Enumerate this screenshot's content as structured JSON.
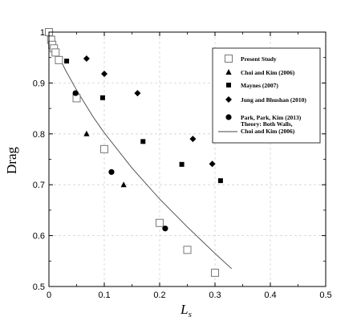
{
  "chart_data": {
    "type": "scatter",
    "xlabel": "L",
    "xlabel_subscript": "s",
    "ylabel": "Drag",
    "xlim": [
      0,
      0.5
    ],
    "ylim": [
      0.5,
      1.0
    ],
    "xticks": [
      0,
      0.1,
      0.2,
      0.3,
      0.4,
      0.5
    ],
    "xtick_labels": [
      "0",
      "0.1",
      "0.2",
      "0.3",
      "0.4",
      "0.5"
    ],
    "yticks": [
      0.5,
      0.6,
      0.7,
      0.8,
      0.9,
      1.0
    ],
    "ytick_labels": [
      "0.5",
      "0.6",
      "0.7",
      "0.8",
      "0.9",
      "1"
    ],
    "grid": true,
    "legend_position": "top-right",
    "series": [
      {
        "name": "Present Study",
        "marker": "open-square",
        "x": [
          0.0,
          0.004,
          0.006,
          0.009,
          0.012,
          0.018,
          0.05,
          0.1,
          0.2,
          0.25,
          0.3
        ],
        "y": [
          1.0,
          0.985,
          0.975,
          0.968,
          0.96,
          0.945,
          0.87,
          0.77,
          0.625,
          0.572,
          0.527
        ]
      },
      {
        "name": "Choi and Kim (2006)",
        "marker": "filled-triangle",
        "x": [
          0.068,
          0.135
        ],
        "y": [
          0.8,
          0.7
        ]
      },
      {
        "name": "Maynes (2007)",
        "marker": "filled-square",
        "x": [
          0.032,
          0.097,
          0.17,
          0.24,
          0.31
        ],
        "y": [
          0.943,
          0.871,
          0.785,
          0.74,
          0.708
        ]
      },
      {
        "name": "Jung and Bhushan (2010)",
        "marker": "filled-diamond",
        "x": [
          0.068,
          0.1,
          0.16,
          0.26,
          0.295
        ],
        "y": [
          0.948,
          0.918,
          0.88,
          0.79,
          0.741
        ]
      },
      {
        "name": "Park, Park, Kim (2013)",
        "marker": "filled-circle",
        "x": [
          0.048,
          0.113,
          0.21
        ],
        "y": [
          0.88,
          0.725,
          0.614
        ]
      },
      {
        "name": "Theory: Both Walls, Choi and Kim (2006)",
        "name_lines": [
          "Theory: Both Walls,",
          "Choi and Kim (2006)"
        ],
        "marker": "line",
        "x": [
          0.0,
          0.01,
          0.02,
          0.03,
          0.05,
          0.08,
          0.1,
          0.15,
          0.2,
          0.25,
          0.3,
          0.33
        ],
        "y": [
          1.0,
          0.972,
          0.947,
          0.925,
          0.886,
          0.833,
          0.802,
          0.733,
          0.672,
          0.617,
          0.565,
          0.535
        ]
      }
    ]
  }
}
